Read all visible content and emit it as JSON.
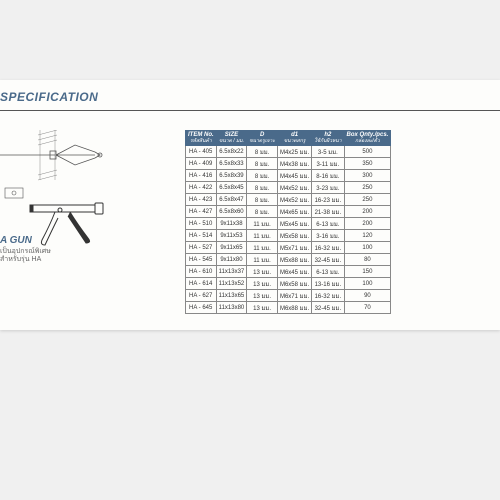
{
  "title": "SPECIFICATION",
  "gun_label": "A GUN",
  "gun_sub1": "เป็นอุปกรณ์พิเศษ",
  "gun_sub2": "สำหรับรุ่น HA",
  "headers": [
    {
      "t": "ITEM No.",
      "s": "รหัสสินค้า"
    },
    {
      "t": "SIZE",
      "s": "ขนาด / มม."
    },
    {
      "t": "D",
      "s": "ขนาดรูเจาะ"
    },
    {
      "t": "d1",
      "s": "ขนาดสกรู"
    },
    {
      "t": "h2",
      "s": "ใช้กับผิวหนา"
    },
    {
      "t": "Box Qnty./pcs.",
      "s": "กล่องละ/ตัว"
    }
  ],
  "rows": [
    [
      "HA - 405",
      "6.5x8x22",
      "8 มม.",
      "M4x25 มม.",
      "3-5 มม.",
      "500"
    ],
    [
      "HA - 409",
      "6.5x8x33",
      "8 มม.",
      "M4x38 มม.",
      "3-11 มม.",
      "350"
    ],
    [
      "HA - 416",
      "6.5x8x39",
      "8 มม.",
      "M4x45 มม.",
      "8-16 มม.",
      "300"
    ],
    [
      "HA - 422",
      "6.5x8x45",
      "8 มม.",
      "M4x52 มม.",
      "3-23 มม.",
      "250"
    ],
    [
      "HA - 423",
      "6.5x8x47",
      "8 มม.",
      "M4x52 มม.",
      "16-23 มม.",
      "250"
    ],
    [
      "HA - 427",
      "6.5x8x60",
      "8 มม.",
      "M4x65 มม.",
      "21-38 มม.",
      "200"
    ],
    [
      "HA - 510",
      "9x11x38",
      "11 มม.",
      "M5x45 มม.",
      "6-13 มม.",
      "200"
    ],
    [
      "HA - 514",
      "9x11x53",
      "11 มม.",
      "M5x58 มม.",
      "3-16 มม.",
      "120"
    ],
    [
      "HA - 527",
      "9x11x65",
      "11 มม.",
      "M5x71 มม.",
      "16-32 มม.",
      "100"
    ],
    [
      "HA - 545",
      "9x11x80",
      "11 มม.",
      "M5x88 มม.",
      "32-45 มม.",
      "80"
    ],
    [
      "HA - 610",
      "11x13x37",
      "13 มม.",
      "M6x45 มม.",
      "6-13 มม.",
      "150"
    ],
    [
      "HA - 614",
      "11x13x52",
      "13 มม.",
      "M6x58 มม.",
      "13-16 มม.",
      "100"
    ],
    [
      "HA - 627",
      "11x13x65",
      "13 มม.",
      "M6x71 มม.",
      "16-32 มม.",
      "90"
    ],
    [
      "HA - 645",
      "11x13x80",
      "13 มม.",
      "M6x88 มม.",
      "32-45 มม.",
      "70"
    ]
  ],
  "colors": {
    "header_bg": "#4a6a8a"
  }
}
